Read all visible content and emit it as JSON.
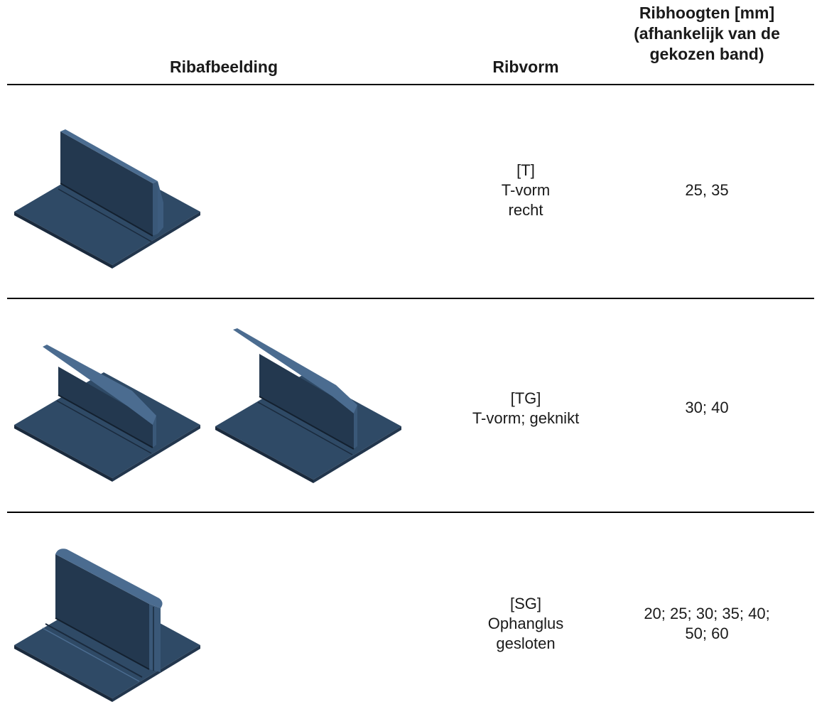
{
  "header": {
    "image_col": "Ribafbeelding",
    "form_col": "Ribvorm",
    "height_col_1": "Ribhoogten [mm]",
    "height_col_2": "(afhankelijk van de",
    "height_col_3": "gekozen band)"
  },
  "rows": [
    {
      "code": "[T]",
      "form_1": "T-vorm",
      "form_2": "recht",
      "heights": "25, 35",
      "heights_2": ""
    },
    {
      "code": "[TG]",
      "form_1": "T-vorm; geknikt",
      "form_2": "",
      "heights": "30; 40",
      "heights_2": ""
    },
    {
      "code": "[SG]",
      "form_1": "Ophanglus",
      "form_2": "gesloten",
      "heights": "20; 25; 30; 35; 40;",
      "heights_2": "50; 60"
    }
  ],
  "colors": {
    "rib_base": "#2f4a66",
    "rib_dark": "#1e3148",
    "rib_light": "#49698c"
  }
}
